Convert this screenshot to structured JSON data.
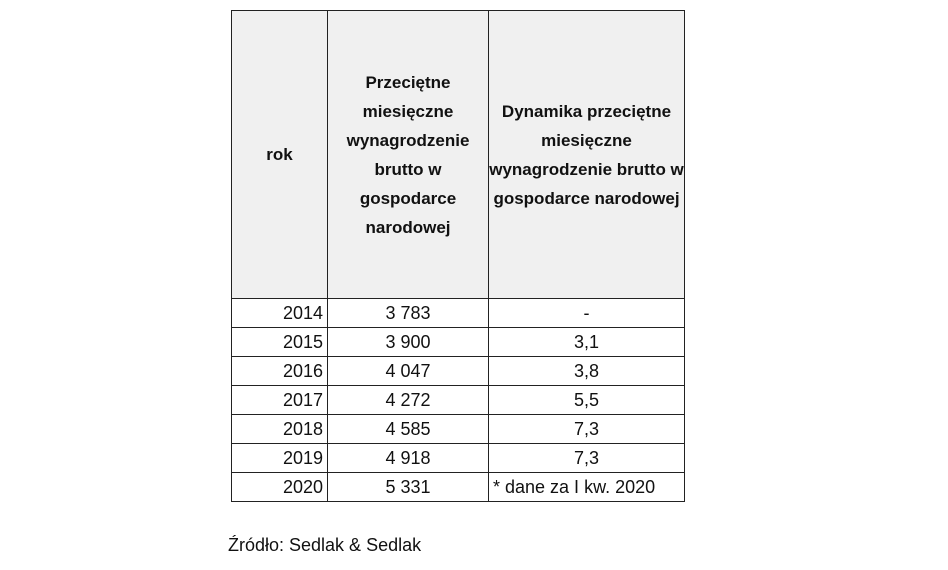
{
  "table": {
    "headers": [
      "rok",
      "Przeciętne miesięczne wynagrodzenie brutto w gospodarce narodowej",
      "Dynamika przeciętne miesięczne wynagrodzenie brutto w gospodarce narodowej"
    ],
    "rows": [
      {
        "year": "2014",
        "wage": "3 783",
        "dynamics": "-"
      },
      {
        "year": "2015",
        "wage": "3 900",
        "dynamics": "3,1"
      },
      {
        "year": "2016",
        "wage": "4 047",
        "dynamics": "3,8"
      },
      {
        "year": "2017",
        "wage": "4 272",
        "dynamics": "5,5"
      },
      {
        "year": "2018",
        "wage": "4 585",
        "dynamics": "7,3"
      },
      {
        "year": "2019",
        "wage": "4 918",
        "dynamics": "7,3"
      },
      {
        "year": "2020",
        "wage": "5 331",
        "dynamics": "* dane za I kw. 2020"
      }
    ],
    "header_bg": "#f0f0f0"
  },
  "source": "Źródło: Sedlak & Sedlak"
}
